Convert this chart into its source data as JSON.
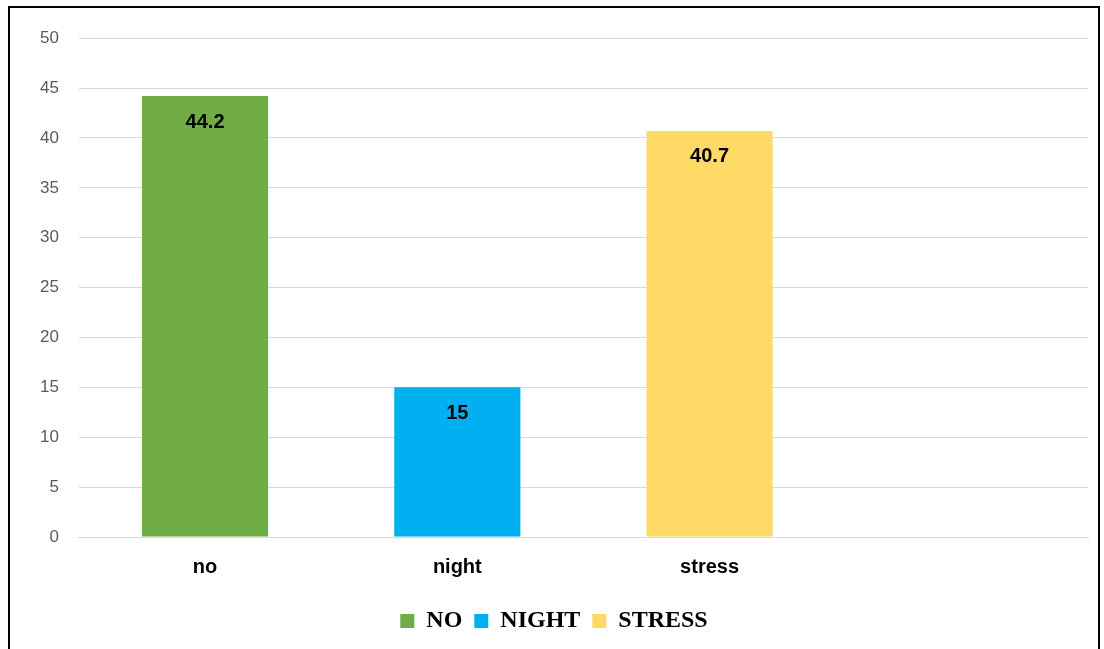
{
  "chart_data": {
    "type": "bar",
    "categories": [
      "no",
      "night",
      "stress",
      null
    ],
    "series": [
      {
        "name": "NO",
        "color": "#70ad47",
        "values": [
          44.2,
          null,
          null,
          null
        ]
      },
      {
        "name": "NIGHT",
        "color": "#00b0f0",
        "values": [
          null,
          15,
          null,
          null
        ]
      },
      {
        "name": "STRESS",
        "color": "#ffd966",
        "values": [
          null,
          null,
          40.7,
          null
        ]
      }
    ],
    "ylim": [
      0,
      50
    ],
    "yticks": [
      0,
      5,
      10,
      15,
      20,
      25,
      30,
      35,
      40,
      45,
      50
    ],
    "grid": "y",
    "legend": "bottom",
    "data_labels": true
  }
}
